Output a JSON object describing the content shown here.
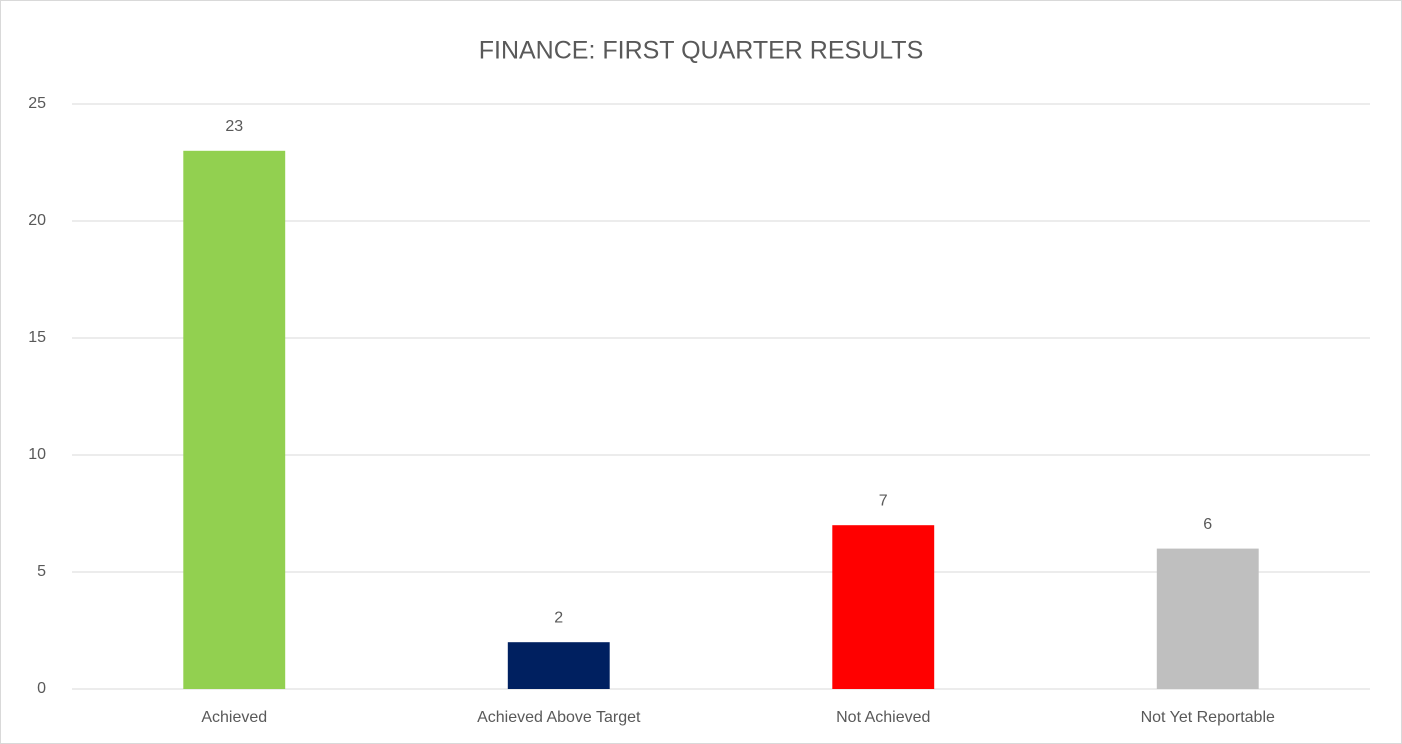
{
  "chart_data": {
    "type": "bar",
    "title": "FINANCE: FIRST QUARTER RESULTS",
    "categories": [
      "Achieved",
      "Achieved Above Target",
      "Not Achieved",
      "Not Yet Reportable"
    ],
    "values": [
      23,
      2,
      7,
      6
    ],
    "colors": [
      "#92d050",
      "#002060",
      "#ff0000",
      "#bfbfbf"
    ],
    "ylim": [
      0,
      25
    ],
    "yticks": [
      0,
      5,
      10,
      15,
      20,
      25
    ],
    "grid": true,
    "data_labels": true
  }
}
